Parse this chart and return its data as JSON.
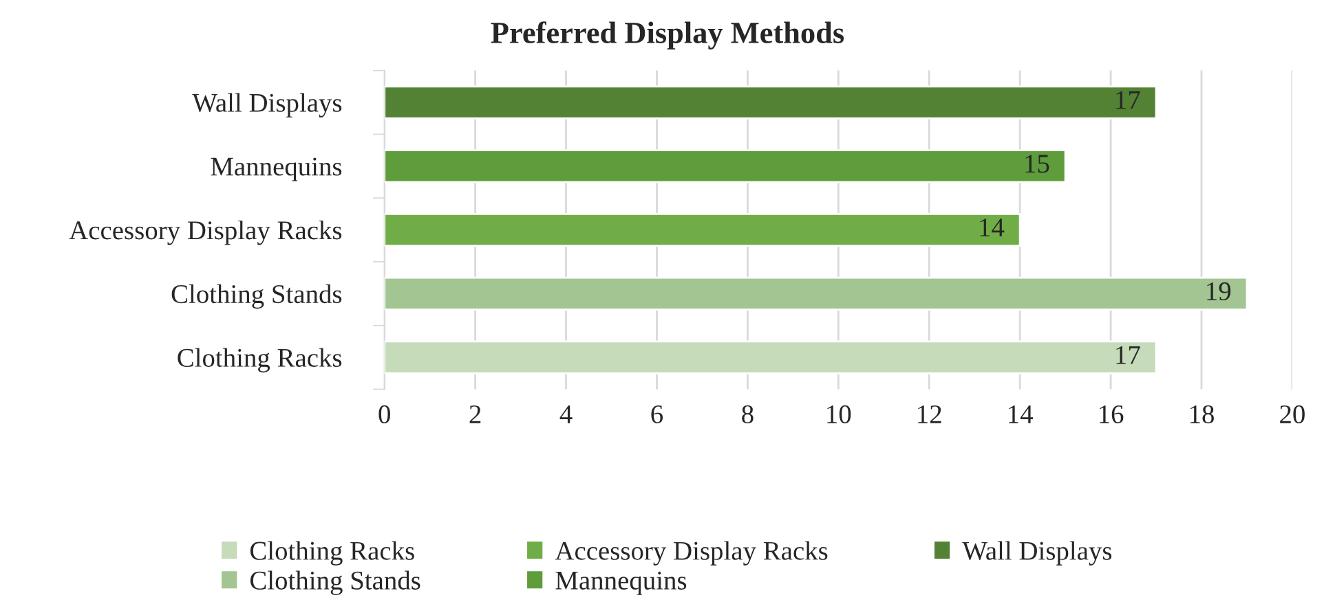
{
  "chart_data": {
    "type": "bar",
    "title": "Preferred Display Methods",
    "orientation": "horizontal",
    "categories": [
      "Wall Displays",
      "Mannequins",
      "Accessory Display Racks",
      "Clothing Stands",
      "Clothing Racks"
    ],
    "series": [
      {
        "name": "Clothing Racks",
        "color": "#c5dbb9",
        "values": [
          null,
          null,
          null,
          null,
          17
        ]
      },
      {
        "name": "Clothing Stands",
        "color": "#a3c592",
        "values": [
          null,
          null,
          null,
          19,
          null
        ]
      },
      {
        "name": "Accessory Display Racks",
        "color": "#70ad47",
        "values": [
          null,
          null,
          14,
          null,
          null
        ]
      },
      {
        "name": "Mannequins",
        "color": "#5e9c3c",
        "values": [
          null,
          15,
          null,
          null,
          null
        ]
      },
      {
        "name": "Wall Displays",
        "color": "#548235",
        "values": [
          17,
          null,
          null,
          null,
          null
        ]
      }
    ],
    "xlim": [
      0,
      20
    ],
    "xticks": [
      0,
      2,
      4,
      6,
      8,
      10,
      12,
      14,
      16,
      18,
      20
    ],
    "grid": "x",
    "legend": "bottom",
    "data_labels": true
  }
}
